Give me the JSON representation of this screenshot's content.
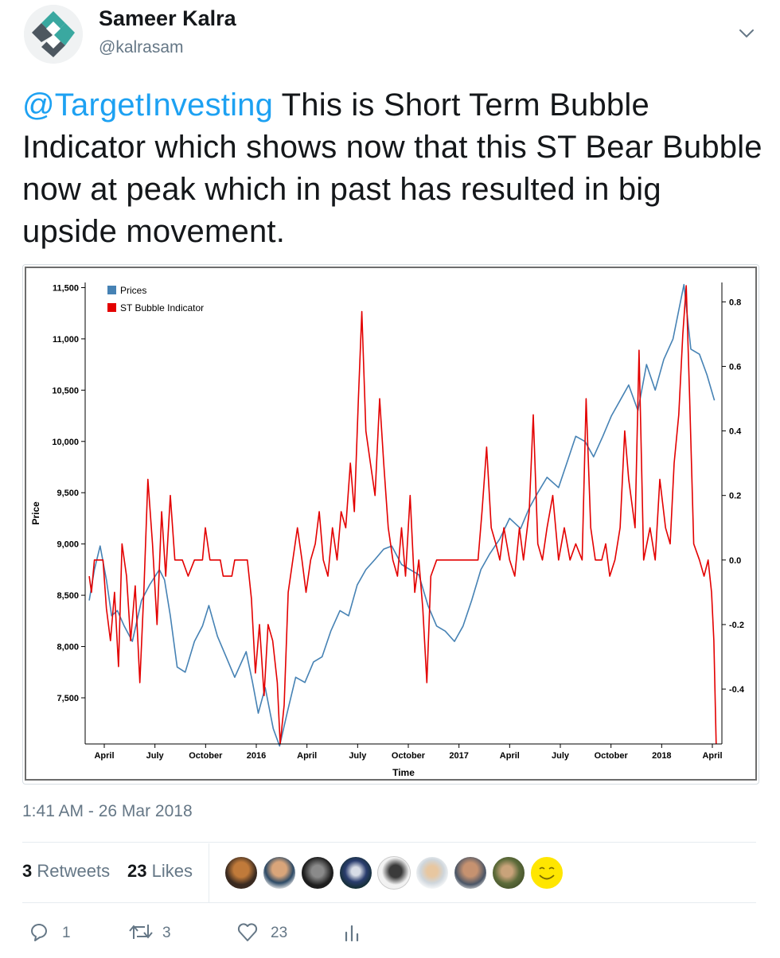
{
  "author": {
    "name": "Sameer Kalra",
    "handle": "@kalrasam"
  },
  "tweet": {
    "mention": "@TargetInvesting",
    "text": " This is Short Term Bubble Indicator which shows now that this ST Bear Bubble now at peak which in past has resulted in big upside movement.",
    "timestamp": "1:41 AM - 26 Mar 2018"
  },
  "stats": {
    "retweets_count": "3",
    "retweets_label": "Retweets",
    "likes_count": "23",
    "likes_label": "Likes"
  },
  "actions": {
    "reply_count": "1",
    "retweet_count": "3",
    "like_count": "23"
  },
  "colors": {
    "mention": "#1da1f2",
    "prices": "#4682b4",
    "indicator": "#e30000"
  },
  "chart_data": {
    "type": "line",
    "title": "",
    "xlabel": "Time",
    "ylabel": "Price",
    "x_tick_labels": [
      "April",
      "July",
      "October",
      "2016",
      "April",
      "July",
      "October",
      "2017",
      "April",
      "July",
      "October",
      "2018",
      "April"
    ],
    "y_left_ticks": [
      "11,500",
      "11,000",
      "10,500",
      "10,000",
      "9,500",
      "9,000",
      "8,500",
      "8,000",
      "7,500"
    ],
    "y_right_ticks": [
      "0.8",
      "0.6",
      "0.4",
      "0.2",
      "0.0",
      "-0.2",
      "-0.4"
    ],
    "ylim_left": [
      7050,
      11550
    ],
    "ylim_right": [
      -0.57,
      0.86
    ],
    "xlim": [
      "2015-03-25",
      "2018-04-05"
    ],
    "legend_position": "top-left",
    "grid": false,
    "series": [
      {
        "name": "Prices",
        "axis": "left",
        "points": [
          [
            "2015-04-01",
            8450
          ],
          [
            "2015-04-10",
            8750
          ],
          [
            "2015-04-20",
            8980
          ],
          [
            "2015-05-01",
            8650
          ],
          [
            "2015-05-10",
            8300
          ],
          [
            "2015-05-20",
            8350
          ],
          [
            "2015-06-01",
            8200
          ],
          [
            "2015-06-15",
            8050
          ],
          [
            "2015-07-01",
            8450
          ],
          [
            "2015-07-15",
            8600
          ],
          [
            "2015-08-01",
            8750
          ],
          [
            "2015-08-10",
            8650
          ],
          [
            "2015-08-20",
            8300
          ],
          [
            "2015-09-01",
            7800
          ],
          [
            "2015-09-15",
            7750
          ],
          [
            "2015-10-01",
            8050
          ],
          [
            "2015-10-15",
            8200
          ],
          [
            "2015-10-26",
            8400
          ],
          [
            "2015-11-10",
            8100
          ],
          [
            "2015-11-25",
            7900
          ],
          [
            "2015-12-10",
            7700
          ],
          [
            "2015-12-30",
            7950
          ],
          [
            "2016-01-10",
            7650
          ],
          [
            "2016-01-20",
            7350
          ],
          [
            "2016-02-01",
            7600
          ],
          [
            "2016-02-15",
            7200
          ],
          [
            "2016-02-26",
            7030
          ],
          [
            "2016-03-10",
            7350
          ],
          [
            "2016-03-25",
            7700
          ],
          [
            "2016-04-10",
            7650
          ],
          [
            "2016-04-25",
            7850
          ],
          [
            "2016-05-10",
            7900
          ],
          [
            "2016-05-25",
            8150
          ],
          [
            "2016-06-10",
            8350
          ],
          [
            "2016-06-25",
            8300
          ],
          [
            "2016-07-10",
            8600
          ],
          [
            "2016-07-25",
            8750
          ],
          [
            "2016-08-10",
            8850
          ],
          [
            "2016-08-25",
            8950
          ],
          [
            "2016-09-08",
            8980
          ],
          [
            "2016-09-25",
            8800
          ],
          [
            "2016-10-10",
            8750
          ],
          [
            "2016-10-25",
            8700
          ],
          [
            "2016-11-10",
            8400
          ],
          [
            "2016-11-25",
            8200
          ],
          [
            "2016-12-10",
            8150
          ],
          [
            "2016-12-26",
            8050
          ],
          [
            "2017-01-10",
            8200
          ],
          [
            "2017-01-25",
            8450
          ],
          [
            "2017-02-10",
            8750
          ],
          [
            "2017-02-25",
            8900
          ],
          [
            "2017-03-15",
            9050
          ],
          [
            "2017-04-01",
            9250
          ],
          [
            "2017-04-20",
            9150
          ],
          [
            "2017-05-05",
            9350
          ],
          [
            "2017-05-20",
            9500
          ],
          [
            "2017-06-05",
            9650
          ],
          [
            "2017-06-25",
            9550
          ],
          [
            "2017-07-10",
            9800
          ],
          [
            "2017-07-25",
            10050
          ],
          [
            "2017-08-10",
            10000
          ],
          [
            "2017-08-25",
            9850
          ],
          [
            "2017-09-10",
            10050
          ],
          [
            "2017-09-25",
            10250
          ],
          [
            "2017-10-10",
            10400
          ],
          [
            "2017-10-25",
            10550
          ],
          [
            "2017-11-10",
            10300
          ],
          [
            "2017-11-25",
            10750
          ],
          [
            "2017-12-10",
            10500
          ],
          [
            "2017-12-25",
            10800
          ],
          [
            "2018-01-10",
            11000
          ],
          [
            "2018-01-29",
            11530
          ],
          [
            "2018-02-10",
            10900
          ],
          [
            "2018-02-25",
            10850
          ],
          [
            "2018-03-10",
            10650
          ],
          [
            "2018-03-23",
            10400
          ]
        ]
      },
      {
        "name": "ST Bubble Indicator",
        "axis": "right",
        "points": [
          [
            "2015-04-01",
            -0.05
          ],
          [
            "2015-04-05",
            -0.1
          ],
          [
            "2015-04-10",
            0.0
          ],
          [
            "2015-04-25",
            0.0
          ],
          [
            "2015-05-01",
            -0.15
          ],
          [
            "2015-05-08",
            -0.25
          ],
          [
            "2015-05-15",
            -0.1
          ],
          [
            "2015-05-22",
            -0.33
          ],
          [
            "2015-05-28",
            0.05
          ],
          [
            "2015-06-05",
            -0.05
          ],
          [
            "2015-06-12",
            -0.25
          ],
          [
            "2015-06-20",
            -0.08
          ],
          [
            "2015-06-28",
            -0.38
          ],
          [
            "2015-07-05",
            -0.1
          ],
          [
            "2015-07-12",
            0.25
          ],
          [
            "2015-07-20",
            0.05
          ],
          [
            "2015-07-28",
            -0.2
          ],
          [
            "2015-08-05",
            0.15
          ],
          [
            "2015-08-12",
            -0.05
          ],
          [
            "2015-08-20",
            0.2
          ],
          [
            "2015-08-28",
            0.0
          ],
          [
            "2015-09-10",
            0.0
          ],
          [
            "2015-09-20",
            -0.05
          ],
          [
            "2015-10-01",
            0.0
          ],
          [
            "2015-10-15",
            0.0
          ],
          [
            "2015-10-20",
            0.1
          ],
          [
            "2015-10-28",
            0.0
          ],
          [
            "2015-11-15",
            0.0
          ],
          [
            "2015-11-20",
            -0.05
          ],
          [
            "2015-12-05",
            -0.05
          ],
          [
            "2015-12-10",
            0.0
          ],
          [
            "2016-01-01",
            0.0
          ],
          [
            "2016-01-08",
            -0.12
          ],
          [
            "2016-01-15",
            -0.35
          ],
          [
            "2016-01-22",
            -0.2
          ],
          [
            "2016-01-30",
            -0.42
          ],
          [
            "2016-02-06",
            -0.2
          ],
          [
            "2016-02-14",
            -0.25
          ],
          [
            "2016-02-22",
            -0.38
          ],
          [
            "2016-02-27",
            -0.57
          ],
          [
            "2016-03-05",
            -0.45
          ],
          [
            "2016-03-12",
            -0.1
          ],
          [
            "2016-03-20",
            0.0
          ],
          [
            "2016-03-28",
            0.1
          ],
          [
            "2016-04-05",
            0.0
          ],
          [
            "2016-04-12",
            -0.1
          ],
          [
            "2016-04-20",
            0.0
          ],
          [
            "2016-04-28",
            0.05
          ],
          [
            "2016-05-05",
            0.15
          ],
          [
            "2016-05-12",
            0.0
          ],
          [
            "2016-05-20",
            -0.05
          ],
          [
            "2016-05-28",
            0.1
          ],
          [
            "2016-06-05",
            0.0
          ],
          [
            "2016-06-12",
            0.15
          ],
          [
            "2016-06-20",
            0.1
          ],
          [
            "2016-06-28",
            0.3
          ],
          [
            "2016-07-05",
            0.15
          ],
          [
            "2016-07-12",
            0.5
          ],
          [
            "2016-07-18",
            0.77
          ],
          [
            "2016-07-25",
            0.4
          ],
          [
            "2016-08-02",
            0.3
          ],
          [
            "2016-08-10",
            0.2
          ],
          [
            "2016-08-18",
            0.5
          ],
          [
            "2016-08-25",
            0.3
          ],
          [
            "2016-09-02",
            0.1
          ],
          [
            "2016-09-10",
            0.0
          ],
          [
            "2016-09-18",
            -0.05
          ],
          [
            "2016-09-25",
            0.1
          ],
          [
            "2016-10-02",
            -0.05
          ],
          [
            "2016-10-10",
            0.2
          ],
          [
            "2016-10-18",
            -0.1
          ],
          [
            "2016-10-25",
            0.0
          ],
          [
            "2016-11-01",
            -0.15
          ],
          [
            "2016-11-08",
            -0.38
          ],
          [
            "2016-11-15",
            -0.05
          ],
          [
            "2016-11-25",
            0.0
          ],
          [
            "2016-12-10",
            0.0
          ],
          [
            "2016-12-20",
            0.0
          ],
          [
            "2017-01-05",
            0.0
          ],
          [
            "2017-01-15",
            0.0
          ],
          [
            "2017-01-25",
            0.0
          ],
          [
            "2017-02-05",
            0.0
          ],
          [
            "2017-02-12",
            0.15
          ],
          [
            "2017-02-20",
            0.35
          ],
          [
            "2017-02-28",
            0.1
          ],
          [
            "2017-03-08",
            0.05
          ],
          [
            "2017-03-15",
            0.0
          ],
          [
            "2017-03-22",
            0.1
          ],
          [
            "2017-04-01",
            0.0
          ],
          [
            "2017-04-10",
            -0.05
          ],
          [
            "2017-04-18",
            0.1
          ],
          [
            "2017-04-25",
            0.0
          ],
          [
            "2017-05-05",
            0.15
          ],
          [
            "2017-05-12",
            0.45
          ],
          [
            "2017-05-20",
            0.05
          ],
          [
            "2017-05-28",
            0.0
          ],
          [
            "2017-06-05",
            0.1
          ],
          [
            "2017-06-15",
            0.2
          ],
          [
            "2017-06-25",
            0.0
          ],
          [
            "2017-07-05",
            0.1
          ],
          [
            "2017-07-15",
            0.0
          ],
          [
            "2017-07-25",
            0.05
          ],
          [
            "2017-08-05",
            0.0
          ],
          [
            "2017-08-12",
            0.5
          ],
          [
            "2017-08-20",
            0.1
          ],
          [
            "2017-08-28",
            0.0
          ],
          [
            "2017-09-08",
            0.0
          ],
          [
            "2017-09-15",
            0.05
          ],
          [
            "2017-09-22",
            -0.05
          ],
          [
            "2017-10-01",
            0.0
          ],
          [
            "2017-10-10",
            0.1
          ],
          [
            "2017-10-18",
            0.4
          ],
          [
            "2017-10-25",
            0.25
          ],
          [
            "2017-11-05",
            0.1
          ],
          [
            "2017-11-12",
            0.65
          ],
          [
            "2017-11-20",
            0.0
          ],
          [
            "2017-12-01",
            0.1
          ],
          [
            "2017-12-10",
            0.0
          ],
          [
            "2017-12-18",
            0.25
          ],
          [
            "2017-12-28",
            0.1
          ],
          [
            "2018-01-05",
            0.05
          ],
          [
            "2018-01-12",
            0.3
          ],
          [
            "2018-01-20",
            0.45
          ],
          [
            "2018-01-27",
            0.7
          ],
          [
            "2018-02-02",
            0.85
          ],
          [
            "2018-02-08",
            0.5
          ],
          [
            "2018-02-15",
            0.05
          ],
          [
            "2018-02-25",
            0.0
          ],
          [
            "2018-03-05",
            -0.05
          ],
          [
            "2018-03-12",
            0.0
          ],
          [
            "2018-03-18",
            -0.1
          ],
          [
            "2018-03-22",
            -0.25
          ],
          [
            "2018-03-26",
            -0.57
          ]
        ]
      }
    ]
  }
}
